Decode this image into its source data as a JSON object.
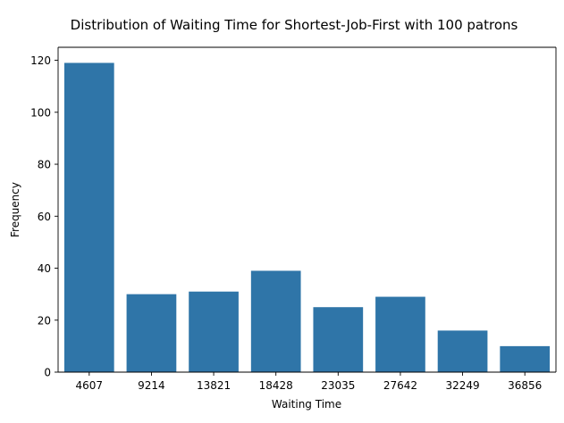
{
  "chart_data": {
    "type": "bar",
    "title": "Distribution of Waiting Time for Shortest-Job-First with 100 patrons",
    "xlabel": "Waiting Time",
    "ylabel": "Frequency",
    "categories": [
      "4607",
      "9214",
      "13821",
      "18428",
      "23035",
      "27642",
      "32249",
      "36856"
    ],
    "values": [
      119,
      30,
      31,
      39,
      25,
      29,
      16,
      10
    ],
    "ylim": [
      0,
      125
    ],
    "yticks": [
      0,
      20,
      40,
      60,
      80,
      100,
      120
    ],
    "grid": false,
    "legend": "none",
    "bar_color": "#2f75a8"
  }
}
